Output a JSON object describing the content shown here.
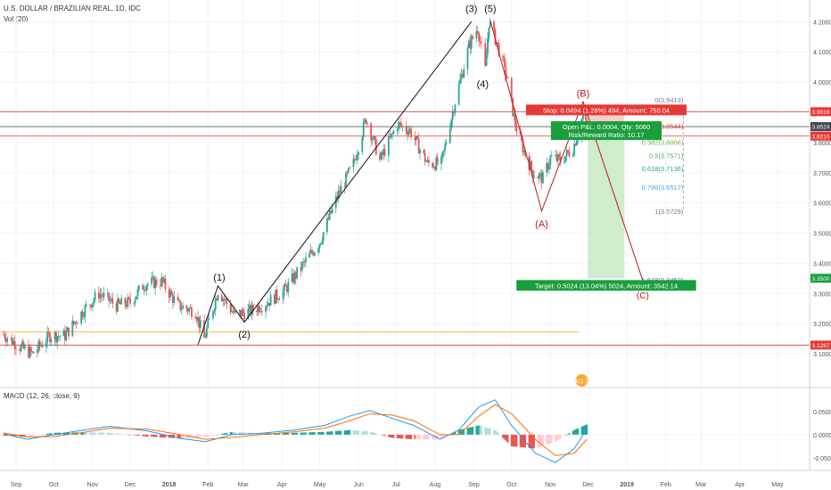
{
  "header": {
    "symbol_title": "U.S. DOLLAR / BRAZILIAN REAL, 1D, IDC",
    "volume_label": "Vol (20)",
    "macd_label": "MACD (12, 26, close, 9)"
  },
  "chart_data": {
    "type": "candlestick",
    "price_axis": {
      "range": [
        3.05,
        4.26
      ],
      "ticks": [
        3.1,
        3.2,
        3.3,
        3.4,
        3.5,
        3.6,
        3.7,
        3.8,
        3.9,
        4.0,
        4.1,
        4.2
      ],
      "tick_labels": [
        "3.1000",
        "3.2000",
        "3.3000",
        "3.4000",
        "3.5000",
        "3.6000",
        "3.7000",
        "3.8000",
        "3.9000",
        "4.0000",
        "4.1000",
        "4.2000"
      ]
    },
    "macd_axis": {
      "range": [
        -0.075,
        0.09
      ],
      "ticks": [
        0.05,
        0.0,
        -0.05
      ],
      "tick_labels": [
        "0.0500",
        "0.0000",
        "-0.0500"
      ]
    },
    "time_axis": {
      "labels": [
        {
          "label": "Sep",
          "date": "2017-09-01"
        },
        {
          "label": "Oct",
          "date": "2017-10-01"
        },
        {
          "label": "Nov",
          "date": "2017-11-01"
        },
        {
          "label": "Dec",
          "date": "2017-12-01"
        },
        {
          "label": "2018",
          "date": "2018-01-01"
        },
        {
          "label": "Feb",
          "date": "2018-02-01"
        },
        {
          "label": "Mar",
          "date": "2018-03-01"
        },
        {
          "label": "Apr",
          "date": "2018-04-01"
        },
        {
          "label": "May",
          "date": "2018-05-01"
        },
        {
          "label": "Jun",
          "date": "2018-06-01"
        },
        {
          "label": "Jul",
          "date": "2018-07-01"
        },
        {
          "label": "Aug",
          "date": "2018-08-01"
        },
        {
          "label": "Sep",
          "date": "2018-09-01"
        },
        {
          "label": "Oct",
          "date": "2018-10-01"
        },
        {
          "label": "Nov",
          "date": "2018-11-01"
        },
        {
          "label": "Dec",
          "date": "2018-12-01"
        },
        {
          "label": "2019",
          "date": "2019-01-01"
        },
        {
          "label": "Feb",
          "date": "2019-02-01"
        },
        {
          "label": "Mar",
          "date": "2019-03-01"
        },
        {
          "label": "Apr",
          "date": "2019-04-01"
        },
        {
          "label": "May",
          "date": "2019-05-01"
        }
      ]
    },
    "price_path": [
      [
        "2017-08-22",
        3.165
      ],
      [
        "2017-09-05",
        3.12
      ],
      [
        "2017-09-14",
        3.1
      ],
      [
        "2017-09-28",
        3.16
      ],
      [
        "2017-10-10",
        3.16
      ],
      [
        "2017-10-24",
        3.24
      ],
      [
        "2017-11-06",
        3.3
      ],
      [
        "2017-11-20",
        3.26
      ],
      [
        "2017-12-01",
        3.27
      ],
      [
        "2017-12-12",
        3.33
      ],
      [
        "2017-12-26",
        3.34
      ],
      [
        "2018-01-08",
        3.26
      ],
      [
        "2018-01-22",
        3.24
      ],
      [
        "2018-01-29",
        3.15
      ],
      [
        "2018-02-09",
        3.31
      ],
      [
        "2018-02-22",
        3.23
      ],
      [
        "2018-03-06",
        3.24
      ],
      [
        "2018-03-20",
        3.27
      ],
      [
        "2018-04-03",
        3.31
      ],
      [
        "2018-04-17",
        3.39
      ],
      [
        "2018-05-01",
        3.47
      ],
      [
        "2018-05-15",
        3.62
      ],
      [
        "2018-05-28",
        3.73
      ],
      [
        "2018-06-07",
        3.88
      ],
      [
        "2018-06-18",
        3.74
      ],
      [
        "2018-07-02",
        3.86
      ],
      [
        "2018-07-12",
        3.84
      ],
      [
        "2018-07-26",
        3.73
      ],
      [
        "2018-08-06",
        3.73
      ],
      [
        "2018-08-16",
        3.92
      ],
      [
        "2018-08-28",
        4.12
      ],
      [
        "2018-09-04",
        4.18
      ],
      [
        "2018-09-10",
        4.04
      ],
      [
        "2018-09-13",
        4.2
      ],
      [
        "2018-09-20",
        4.12
      ],
      [
        "2018-09-27",
        4.02
      ],
      [
        "2018-10-04",
        3.86
      ],
      [
        "2018-10-11",
        3.77
      ],
      [
        "2018-10-18",
        3.7
      ],
      [
        "2018-10-26",
        3.68
      ],
      [
        "2018-11-01",
        3.75
      ],
      [
        "2018-11-09",
        3.74
      ],
      [
        "2018-11-19",
        3.78
      ],
      [
        "2018-11-27",
        3.89
      ],
      [
        "2018-11-30",
        3.86
      ]
    ],
    "horizontal_levels": [
      {
        "price": 3.9018,
        "label": "3.9018",
        "color": "#e53935"
      },
      {
        "price": 3.8524,
        "label": "3.8524",
        "color": "#434651"
      },
      {
        "price": 3.821,
        "label": "3.8210",
        "color": "#e53935"
      },
      {
        "price": 3.35,
        "label": "3.3500",
        "color": "#1b9e3e"
      },
      {
        "price": 3.1287,
        "label": "3.1287",
        "color": "#e53935"
      }
    ],
    "support_line_price": 3.172,
    "elliott_wave": {
      "impulse_labels": [
        {
          "label": "(1)",
          "date": "2018-02-10",
          "price": 3.33
        },
        {
          "label": "(2)",
          "date": "2018-03-02",
          "price": 3.2
        },
        {
          "label": "(3)",
          "date": "2018-08-30",
          "price": 4.22
        },
        {
          "label": "(4)",
          "date": "2018-09-08",
          "price": 4.03
        },
        {
          "label": "(5)",
          "date": "2018-09-14",
          "price": 4.22
        }
      ],
      "impulse_path": [
        [
          "2018-01-24",
          3.13
        ],
        [
          "2018-02-09",
          3.325
        ],
        [
          "2018-03-02",
          3.205
        ],
        [
          "2018-08-30",
          4.2
        ]
      ],
      "correction_labels": [
        {
          "label": "(A)",
          "date": "2018-10-25",
          "price": 3.572
        },
        {
          "label": "(B)",
          "date": "2018-11-27",
          "price": 3.94
        }
      ],
      "correction_path": [
        [
          "2018-09-14",
          4.205
        ],
        [
          "2018-10-25",
          3.573
        ],
        [
          "2018-11-27",
          3.935
        ],
        [
          "2019-01-15",
          3.325
        ]
      ],
      "c_label": "(C)"
    },
    "fibonacci": [
      {
        "text": "0(3.9413)",
        "price": 3.9413,
        "color": "#787b86"
      },
      {
        "text": "0.236(3.8544)",
        "price": 3.8544,
        "color": "#e53935"
      },
      {
        "text": "0.382(3.8006)",
        "price": 3.8006,
        "color": "#7cb342"
      },
      {
        "text": "0.5(3.7571)",
        "price": 3.7571,
        "color": "#4caf50"
      },
      {
        "text": "0.618(3.7136)",
        "price": 3.7136,
        "color": "#26a69a"
      },
      {
        "text": "0.786(3.6517)",
        "price": 3.6517,
        "color": "#42a5f5"
      },
      {
        "text": "1(3.5729)",
        "price": 3.5729,
        "color": "#787b86"
      },
      {
        "text": "1.618(3.3452)",
        "price": 3.3452,
        "color": "#5c6bc0"
      }
    ],
    "position": {
      "entry_price": 3.8524,
      "stop_price": 3.9018,
      "target_price": 3.35,
      "start_date": "2018-12-01",
      "end_date": "2018-12-30",
      "stop_label": "Stop: 0.0494 (1.28%) 494, Amount: 750.04",
      "pnl_label": "Open P&L: 0.0004, Qty: 5060",
      "rr_label": "Risk/Reward Ratio: 10.17",
      "target_label": "Target: 0.5024 (13.04%) 5024, Amount: 3542.14"
    },
    "event_badge": "EQ 2",
    "macd": {
      "macd_path": [
        [
          "2017-08-22",
          0.002
        ],
        [
          "2017-09-10",
          -0.01
        ],
        [
          "2017-10-01",
          0.0
        ],
        [
          "2017-10-25",
          0.01
        ],
        [
          "2017-11-15",
          0.018
        ],
        [
          "2017-12-15",
          0.008
        ],
        [
          "2018-01-10",
          -0.008
        ],
        [
          "2018-01-30",
          -0.015
        ],
        [
          "2018-02-20",
          0.0
        ],
        [
          "2018-03-15",
          0.003
        ],
        [
          "2018-04-10",
          0.01
        ],
        [
          "2018-05-05",
          0.02
        ],
        [
          "2018-05-25",
          0.04
        ],
        [
          "2018-06-10",
          0.052
        ],
        [
          "2018-06-28",
          0.035
        ],
        [
          "2018-07-15",
          0.02
        ],
        [
          "2018-08-05",
          -0.01
        ],
        [
          "2018-08-20",
          0.01
        ],
        [
          "2018-09-05",
          0.06
        ],
        [
          "2018-09-18",
          0.075
        ],
        [
          "2018-10-01",
          0.02
        ],
        [
          "2018-10-20",
          -0.04
        ],
        [
          "2018-11-05",
          -0.06
        ],
        [
          "2018-11-20",
          -0.03
        ],
        [
          "2018-11-30",
          0.012
        ]
      ],
      "signal_path": [
        [
          "2017-08-22",
          0.004
        ],
        [
          "2017-09-10",
          -0.005
        ],
        [
          "2017-10-01",
          -0.004
        ],
        [
          "2017-10-25",
          0.005
        ],
        [
          "2017-11-15",
          0.014
        ],
        [
          "2017-12-15",
          0.012
        ],
        [
          "2018-01-10",
          0.0
        ],
        [
          "2018-01-30",
          -0.01
        ],
        [
          "2018-02-20",
          -0.006
        ],
        [
          "2018-03-15",
          0.0
        ],
        [
          "2018-04-10",
          0.006
        ],
        [
          "2018-05-05",
          0.014
        ],
        [
          "2018-05-25",
          0.03
        ],
        [
          "2018-06-10",
          0.045
        ],
        [
          "2018-06-28",
          0.042
        ],
        [
          "2018-07-15",
          0.03
        ],
        [
          "2018-08-05",
          0.0
        ],
        [
          "2018-08-20",
          0.0
        ],
        [
          "2018-09-05",
          0.04
        ],
        [
          "2018-09-18",
          0.065
        ],
        [
          "2018-10-01",
          0.045
        ],
        [
          "2018-10-20",
          -0.01
        ],
        [
          "2018-11-05",
          -0.045
        ],
        [
          "2018-11-20",
          -0.04
        ],
        [
          "2018-11-30",
          -0.01
        ]
      ]
    },
    "colors": {
      "up": "#26a69a",
      "down": "#ef5350",
      "macd_line": "#2196f3",
      "signal_line": "#ff6d00",
      "wave_impulse": "#111111",
      "wave_correction": "#b71c1c",
      "profit_zone": "#c8ebc8",
      "loss_zone": "#f6c6c6",
      "support_line": "#ffb74d"
    }
  }
}
